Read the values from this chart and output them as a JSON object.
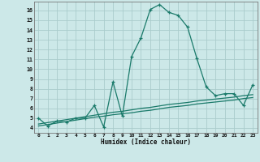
{
  "xlabel": "Humidex (Indice chaleur)",
  "background_color": "#cce8e8",
  "grid_color": "#aacccc",
  "line_color": "#1a7a6a",
  "xlim": [
    -0.5,
    23.5
  ],
  "ylim": [
    3.5,
    16.9
  ],
  "x_ticks": [
    0,
    1,
    2,
    3,
    4,
    5,
    6,
    7,
    8,
    9,
    10,
    11,
    12,
    13,
    14,
    15,
    16,
    17,
    18,
    19,
    20,
    21,
    22,
    23
  ],
  "y_ticks": [
    4,
    5,
    6,
    7,
    8,
    9,
    10,
    11,
    12,
    13,
    14,
    15,
    16
  ],
  "main_y": [
    5.0,
    4.2,
    4.7,
    4.6,
    5.0,
    5.0,
    6.3,
    4.1,
    8.7,
    5.2,
    11.3,
    13.2,
    16.1,
    16.6,
    15.8,
    15.5,
    14.3,
    11.1,
    8.2,
    7.3,
    7.5,
    7.5,
    6.3,
    8.4
  ],
  "linear1_y": [
    4.4,
    4.55,
    4.7,
    4.85,
    5.0,
    5.15,
    5.3,
    5.45,
    5.6,
    5.7,
    5.85,
    6.0,
    6.1,
    6.25,
    6.4,
    6.5,
    6.6,
    6.75,
    6.85,
    6.95,
    7.05,
    7.15,
    7.3,
    7.4
  ],
  "linear2_y": [
    4.2,
    4.35,
    4.5,
    4.65,
    4.8,
    4.95,
    5.1,
    5.2,
    5.35,
    5.45,
    5.55,
    5.7,
    5.8,
    5.95,
    6.1,
    6.2,
    6.3,
    6.45,
    6.55,
    6.65,
    6.75,
    6.85,
    7.0,
    7.1
  ]
}
